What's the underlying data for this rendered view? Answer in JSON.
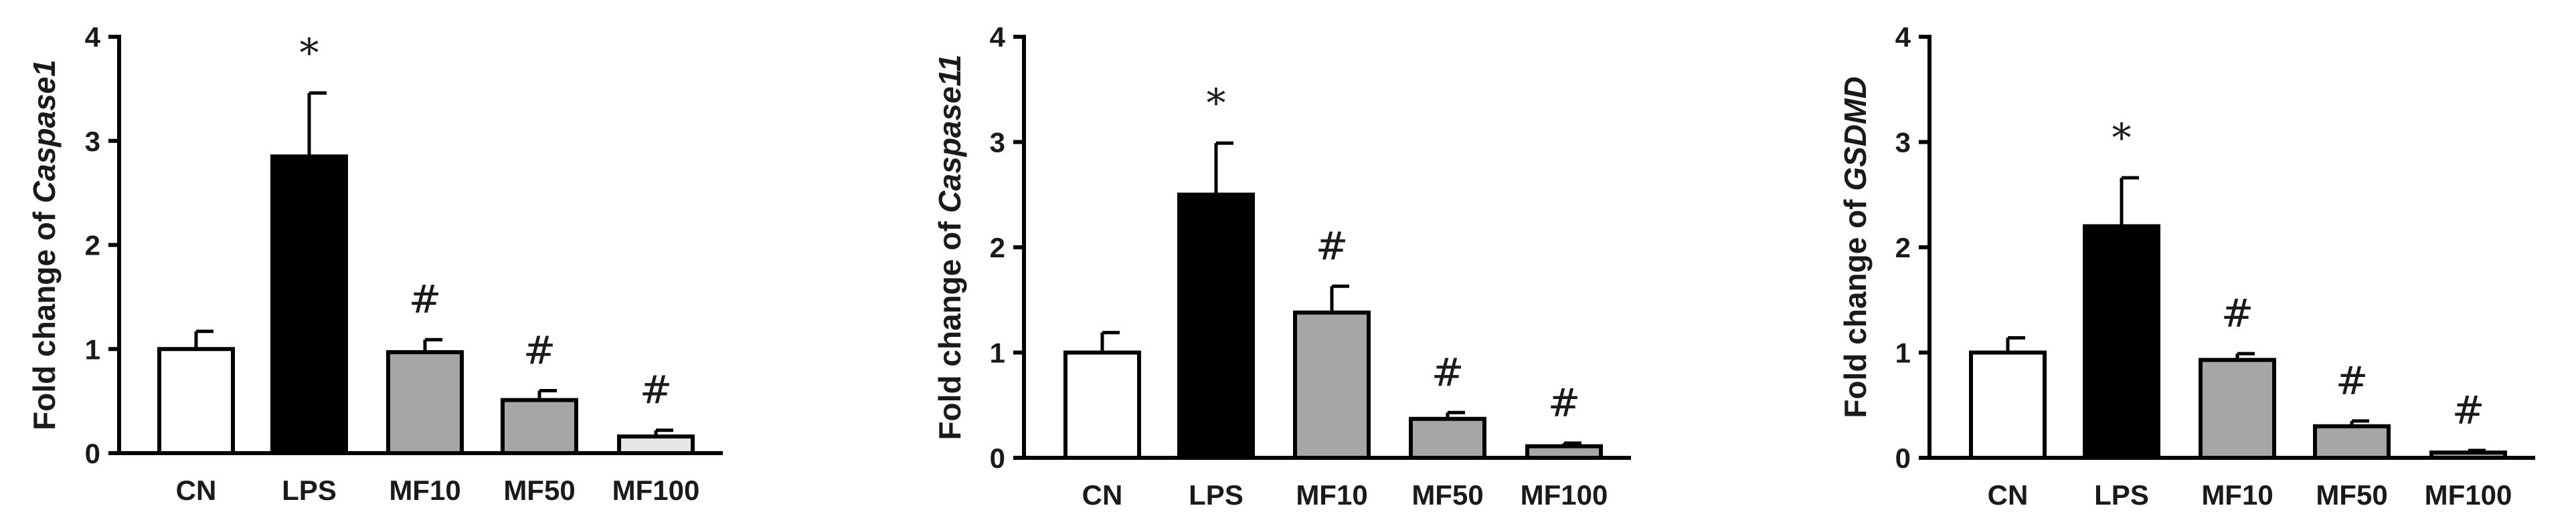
{
  "chart_data": [
    {
      "type": "bar",
      "ylabel_prefix": "Fold change of ",
      "ylabel_gene": "Caspase1",
      "categories": [
        "CN",
        "LPS",
        "MF10",
        "MF50",
        "MF100"
      ],
      "values": [
        1.0,
        2.85,
        0.97,
        0.51,
        0.16
      ],
      "errors": [
        0.17,
        0.61,
        0.12,
        0.09,
        0.06
      ],
      "annotations": [
        "",
        "*",
        "#",
        "#",
        "#"
      ],
      "fill_colors": [
        "#ffffff",
        "#000000",
        "#a6a6a6",
        "#a6a6a6",
        "#e6e6e6"
      ],
      "ylim": [
        0,
        4
      ],
      "yticks": [
        "0",
        "1",
        "2",
        "3",
        "4"
      ]
    },
    {
      "type": "bar",
      "ylabel_prefix": "Fold change of ",
      "ylabel_gene": "Caspase11",
      "categories": [
        "CN",
        "LPS",
        "MF10",
        "MF50",
        "MF100"
      ],
      "values": [
        1.0,
        2.5,
        1.38,
        0.37,
        0.11
      ],
      "errors": [
        0.19,
        0.49,
        0.25,
        0.06,
        0.03
      ],
      "annotations": [
        "",
        "*",
        "#",
        "#",
        "#"
      ],
      "fill_colors": [
        "#ffffff",
        "#000000",
        "#a6a6a6",
        "#a6a6a6",
        "#a6a6a6"
      ],
      "ylim": [
        0,
        4
      ],
      "yticks": [
        "0",
        "1",
        "2",
        "3",
        "4"
      ]
    },
    {
      "type": "bar",
      "ylabel_prefix": "Fold change of ",
      "ylabel_gene": "GSDMD",
      "categories": [
        "CN",
        "LPS",
        "MF10",
        "MF50",
        "MF100"
      ],
      "values": [
        1.0,
        2.2,
        0.93,
        0.3,
        0.05
      ],
      "errors": [
        0.14,
        0.46,
        0.06,
        0.05,
        0.02
      ],
      "annotations": [
        "",
        "*",
        "#",
        "#",
        "#"
      ],
      "fill_colors": [
        "#ffffff",
        "#000000",
        "#a6a6a6",
        "#a6a6a6",
        "#a6a6a6"
      ],
      "ylim": [
        0,
        4
      ],
      "yticks": [
        "0",
        "1",
        "2",
        "3",
        "4"
      ]
    }
  ]
}
